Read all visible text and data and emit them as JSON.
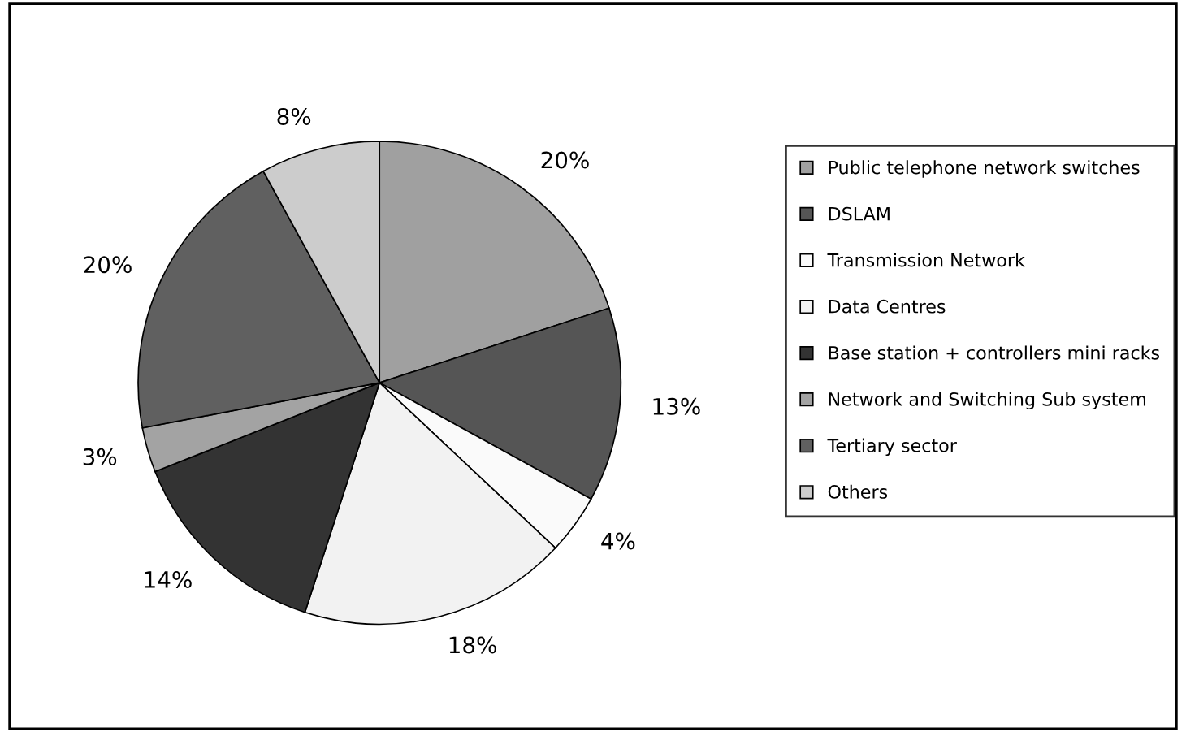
{
  "chart_data": {
    "type": "pie",
    "categories": [
      "Public telephone network switches",
      "DSLAM",
      "Transmission Network",
      "Data Centres",
      "Base station + controllers mini racks",
      "Network and Switching Sub system",
      "Tertiary sector",
      "Others"
    ],
    "values": [
      20,
      13,
      4,
      18,
      14,
      3,
      20,
      8
    ],
    "value_labels": [
      "20%",
      "13%",
      "4%",
      "18%",
      "14%",
      "3%",
      "20%",
      "8%"
    ],
    "colors": [
      "#a0a0a0",
      "#555555",
      "#fafafa",
      "#f2f2f2",
      "#333333",
      "#a3a3a3",
      "#606060",
      "#cccccc"
    ],
    "legend": "right"
  }
}
